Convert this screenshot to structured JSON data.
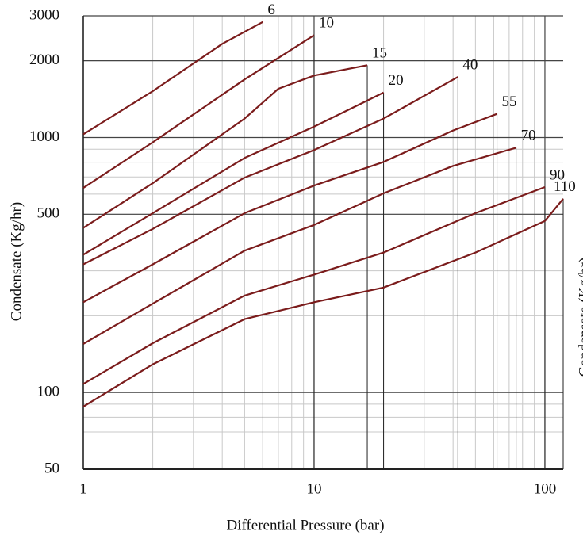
{
  "chart_data": {
    "type": "line",
    "log_x": true,
    "log_y": true,
    "grid": true,
    "minor_grid": true,
    "x_label": "Differential Pressure (bar)",
    "y_label": "Condensate (Kg/hr)",
    "right_label": "Condensate (Kg/hr)",
    "xlim": [
      1,
      120
    ],
    "ylim": [
      50,
      3000
    ],
    "xticks": [
      1,
      10,
      100
    ],
    "yticks": [
      50,
      100,
      500,
      1000,
      2000,
      3000
    ],
    "series": [
      {
        "name": "6",
        "color": "#7b1c1c",
        "x": [
          1,
          2,
          4,
          6
        ],
        "values": [
          1030,
          1520,
          2330,
          2840
        ]
      },
      {
        "name": "10",
        "color": "#7b1c1c",
        "x": [
          1,
          2,
          5,
          10
        ],
        "values": [
          634,
          958,
          1690,
          2520
        ]
      },
      {
        "name": "15",
        "color": "#7b1c1c",
        "x": [
          1,
          2,
          5,
          7,
          10,
          17
        ],
        "values": [
          442,
          662,
          1186,
          1553,
          1750,
          1920
        ]
      },
      {
        "name": "20",
        "color": "#7b1c1c",
        "x": [
          1,
          2,
          5,
          10,
          20
        ],
        "values": [
          347,
          505,
          831,
          1104,
          1500
        ]
      },
      {
        "name": "40",
        "color": "#7b1c1c",
        "x": [
          1,
          2,
          5,
          10,
          20,
          42
        ],
        "values": [
          318,
          438,
          696,
          893,
          1186,
          1728
        ]
      },
      {
        "name": "55",
        "color": "#7b1c1c",
        "x": [
          1,
          2,
          5,
          10,
          20,
          40,
          62
        ],
        "values": [
          226,
          318,
          505,
          648,
          802,
          1066,
          1238
        ]
      },
      {
        "name": "70",
        "color": "#7b1c1c",
        "x": [
          1,
          2,
          5,
          10,
          20,
          40,
          75
        ],
        "values": [
          155,
          223,
          360,
          454,
          604,
          774,
          912
        ]
      },
      {
        "name": "90",
        "color": "#7b1c1c",
        "x": [
          1,
          2,
          5,
          10,
          20,
          50,
          100
        ],
        "values": [
          108,
          156,
          240,
          290,
          354,
          505,
          639
        ]
      },
      {
        "name": "110",
        "color": "#7b1c1c",
        "x": [
          1,
          2,
          5,
          10,
          20,
          50,
          100,
          120
        ],
        "values": [
          88,
          129,
          194,
          226,
          258,
          354,
          471,
          575
        ]
      }
    ]
  }
}
